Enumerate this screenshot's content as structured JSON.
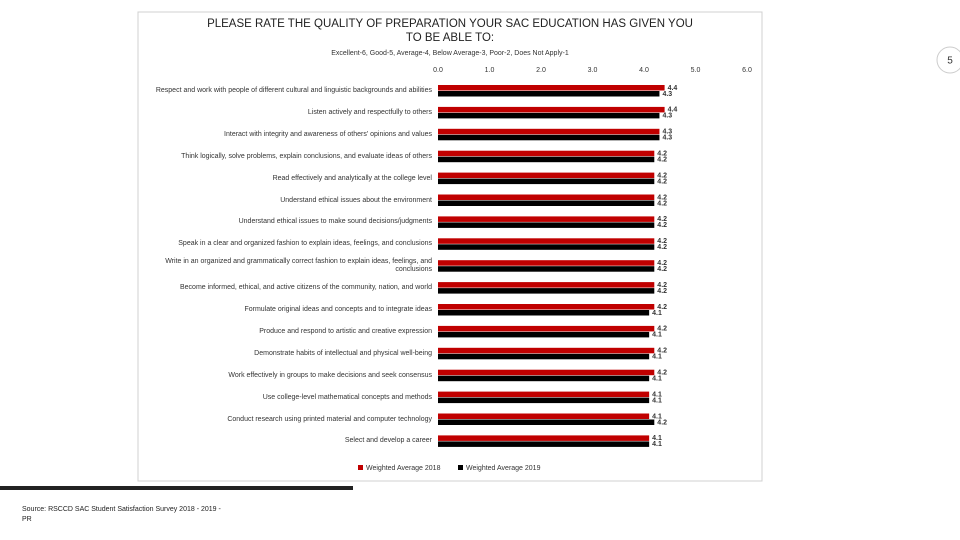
{
  "page_number": "5",
  "source": "Source: RSCCD SAC Student Satisfaction Survey 2018 - 2019 - PR",
  "chart_data": {
    "type": "hbar",
    "title": "PLEASE RATE THE QUALITY OF PREPARATION YOUR SAC EDUCATION HAS GIVEN YOU TO BE ABLE TO:",
    "subtitle": "Excellent-6, Good-5, Average-4, Below Average-3, Poor-2, Does Not Apply-1",
    "categories": [
      "Respect and work with people of different cultural and linguistic backgrounds and abilities",
      "Listen actively and respectfully to others",
      "Interact with integrity and awareness of others' opinions and values",
      "Think logically, solve problems, explain conclusions, and evaluate ideas of others",
      "Read effectively and analytically at the college level",
      "Understand ethical issues about the environment",
      "Understand ethical issues to make sound decisions/judgments",
      "Speak in a clear and organized fashion to explain ideas, feelings, and conclusions",
      "Write in an organized and grammatically correct fashion to explain ideas, feelings, and conclusions",
      "Become informed, ethical, and active citizens of the community, nation, and world",
      "Formulate original ideas and concepts and to integrate ideas",
      "Produce and respond to artistic and creative expression",
      "Demonstrate habits of intellectual and physical well-being",
      "Work effectively in groups to make decisions and seek consensus",
      "Use college-level mathematical concepts and methods",
      "Conduct research using printed material and computer technology",
      "Select and develop a career"
    ],
    "series": [
      {
        "name": "Weighted Average 2018",
        "color": "#c00000",
        "values": [
          4.4,
          4.4,
          4.3,
          4.2,
          4.2,
          4.2,
          4.2,
          4.2,
          4.2,
          4.2,
          4.2,
          4.2,
          4.2,
          4.2,
          4.1,
          4.1,
          4.1
        ]
      },
      {
        "name": "Weighted Average 2019",
        "color": "#000000",
        "values": [
          4.3,
          4.3,
          4.3,
          4.2,
          4.2,
          4.2,
          4.2,
          4.2,
          4.2,
          4.2,
          4.1,
          4.1,
          4.1,
          4.1,
          4.1,
          4.2,
          4.1
        ]
      }
    ],
    "xlim": [
      0,
      6
    ],
    "xticks": [
      {
        "value": 0,
        "label": "0.0"
      },
      {
        "value": 1,
        "label": "1.0"
      },
      {
        "value": 2,
        "label": "2.0"
      },
      {
        "value": 3,
        "label": "3.0"
      },
      {
        "value": 4,
        "label": "4.0"
      },
      {
        "value": 5,
        "label": "5.0"
      },
      {
        "value": 6,
        "label": "6.0"
      }
    ],
    "legend": "bottom"
  }
}
